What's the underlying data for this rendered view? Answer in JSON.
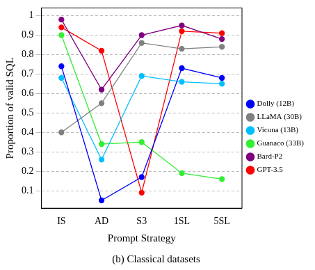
{
  "chart_data": {
    "type": "line",
    "title": "(b) Classical datasets",
    "x_label": "Prompt Strategy",
    "y_label": "Proportion of valid SQL",
    "categories": [
      "IS",
      "AD",
      "S3",
      "1SL",
      "5SL"
    ],
    "series": [
      {
        "name": "Dolly (12B)",
        "color": "#0000ff",
        "values": [
          0.74,
          0.05,
          0.17,
          0.73,
          0.68
        ]
      },
      {
        "name": "LLaMA (30B)",
        "color": "#808080",
        "values": [
          0.4,
          0.55,
          0.86,
          0.83,
          0.84
        ]
      },
      {
        "name": "Vicuna (13B)",
        "color": "#00bfff",
        "values": [
          0.68,
          0.26,
          0.69,
          0.66,
          0.65
        ]
      },
      {
        "name": "Guanaco (33B)",
        "color": "#33ee33",
        "values": [
          0.9,
          0.34,
          0.35,
          0.19,
          0.16
        ]
      },
      {
        "name": "Bard-P2",
        "color": "#800080",
        "values": [
          0.98,
          0.62,
          0.9,
          0.95,
          0.88
        ]
      },
      {
        "name": "GPT-3.5",
        "color": "#ff0000",
        "values": [
          0.94,
          0.82,
          0.09,
          0.92,
          0.91
        ]
      }
    ],
    "ylim": [
      0.01,
      1.04
    ],
    "yticks": [
      0.1,
      0.2,
      0.3,
      0.4,
      0.5,
      0.6,
      0.7,
      0.8,
      0.9,
      1
    ],
    "grid": true,
    "legend": "right",
    "marker": "circle",
    "line_style": "solid"
  }
}
